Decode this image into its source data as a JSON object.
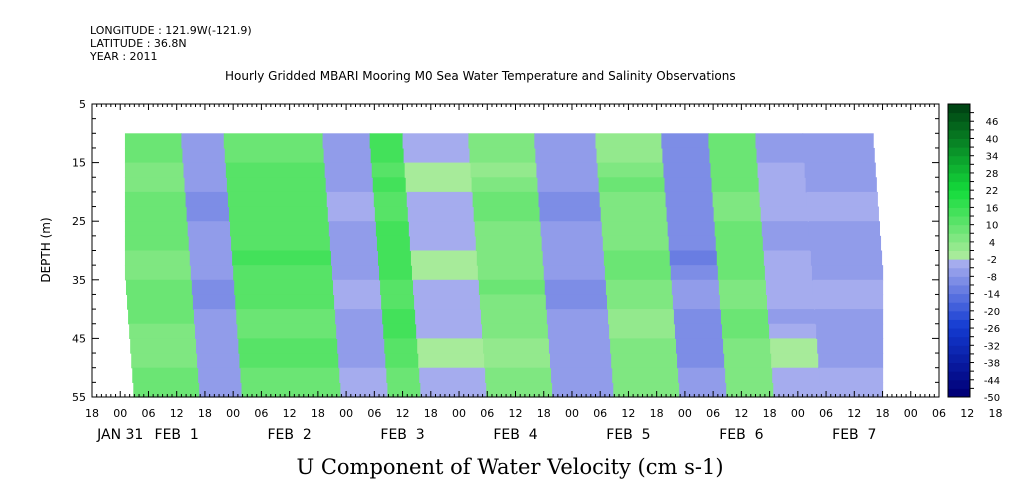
{
  "header": {
    "longitude": "LONGITUDE : 121.9W(-121.9)",
    "latitude": "LATITUDE : 36.8N",
    "year": "YEAR : 2011",
    "title": "Hourly Gridded MBARI Mooring M0 Sea Water Temperature and Salinity Observations"
  },
  "chart_data": {
    "type": "heatmap",
    "title": "Hourly Gridded MBARI Mooring M0 Sea Water Temperature and Salinity Observations",
    "xlabel": "U Component of Water Velocity (cm s-1)",
    "ylabel": "DEPTH (m)",
    "x_axis": {
      "range_hours_from_jan31_00": [
        -6,
        174
      ],
      "hour_tick_labels": [
        "18",
        "00",
        "06",
        "12",
        "18",
        "00",
        "06",
        "12",
        "18",
        "00",
        "06",
        "12",
        "18",
        "00",
        "06",
        "12",
        "18",
        "00",
        "06",
        "12",
        "18",
        "00",
        "06",
        "12",
        "18",
        "00",
        "06",
        "12",
        "18",
        "00",
        "06",
        "12",
        "18"
      ],
      "day_labels": [
        {
          "label": "JAN 31",
          "hour": 0
        },
        {
          "label": "FEB  1",
          "hour": 12
        },
        {
          "label": "FEB  2",
          "hour": 36
        },
        {
          "label": "FEB  3",
          "hour": 60
        },
        {
          "label": "FEB  4",
          "hour": 84
        },
        {
          "label": "FEB  5",
          "hour": 108
        },
        {
          "label": "FEB  6",
          "hour": 132
        },
        {
          "label": "FEB  7",
          "hour": 156
        }
      ]
    },
    "y_axis": {
      "range": [
        5,
        55
      ],
      "reversed": true,
      "tick_labels": [
        "5",
        "15",
        "25",
        "35",
        "45",
        "55"
      ],
      "data_depth_range": [
        10,
        55
      ]
    },
    "data_time_range_hours": [
      1,
      162
    ],
    "colorbar": {
      "tick_labels": [
        "46",
        "40",
        "34",
        "28",
        "22",
        "16",
        "10",
        "4",
        "-2",
        "-8",
        "-14",
        "-20",
        "-26",
        "-32",
        "-38",
        "-44",
        "-50"
      ],
      "range": [
        -50,
        52
      ],
      "step": 3
    },
    "approx_surface_pattern": [
      {
        "hours": [
          1,
          15
        ],
        "value": 8
      },
      {
        "hours": [
          15,
          24
        ],
        "value": -8
      },
      {
        "hours": [
          24,
          45
        ],
        "value": 12
      },
      {
        "hours": [
          45,
          55
        ],
        "value": -6
      },
      {
        "hours": [
          55,
          62
        ],
        "value": 14
      },
      {
        "hours": [
          62,
          76
        ],
        "value": -3
      },
      {
        "hours": [
          76,
          90
        ],
        "value": 6
      },
      {
        "hours": [
          90,
          103
        ],
        "value": -8
      },
      {
        "hours": [
          103,
          117
        ],
        "value": 6
      },
      {
        "hours": [
          117,
          127
        ],
        "value": -10
      },
      {
        "hours": [
          127,
          137
        ],
        "value": 8
      },
      {
        "hours": [
          137,
          147
        ],
        "value": -4
      },
      {
        "hours": [
          147,
          162
        ],
        "value": -6
      }
    ]
  },
  "colors": {
    "background": "#ffffff",
    "missing": "#ffffff",
    "axis": "#000000"
  }
}
